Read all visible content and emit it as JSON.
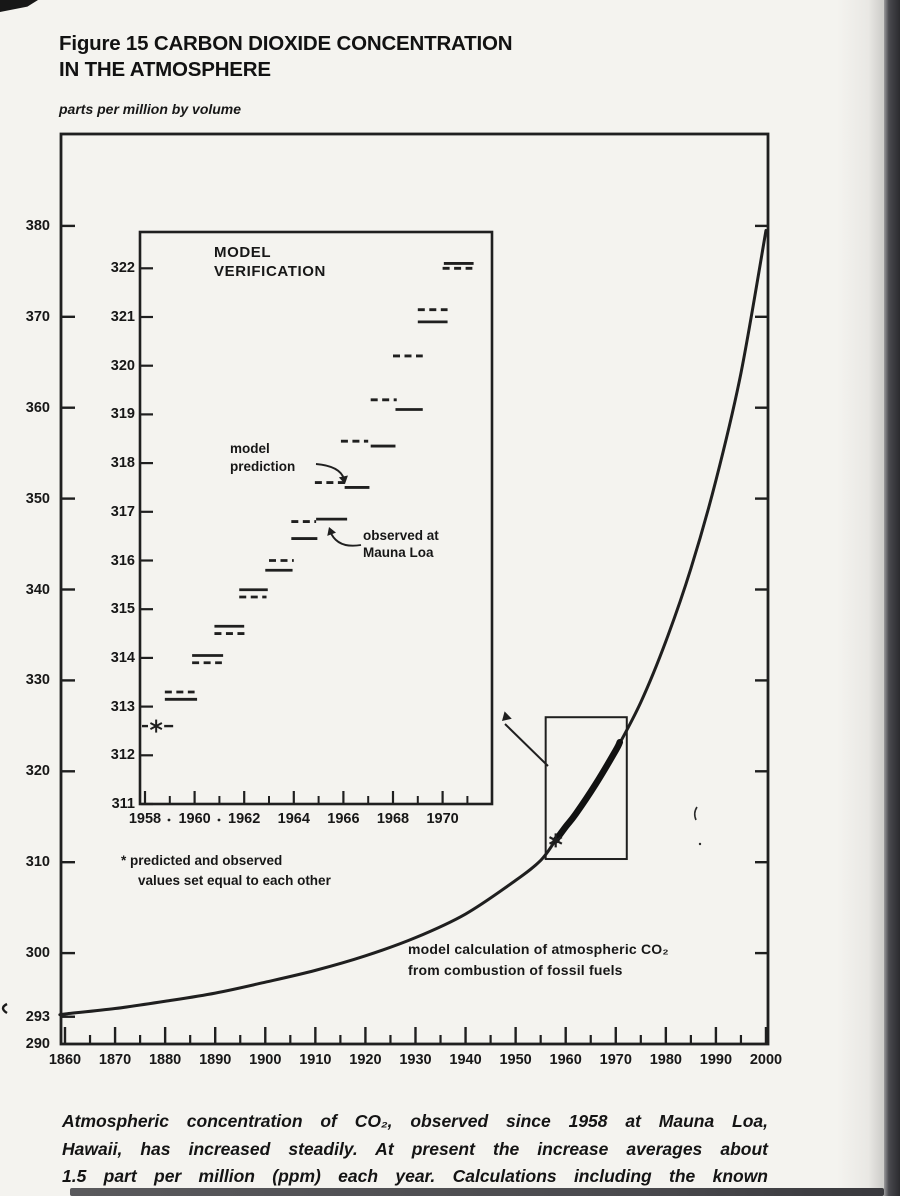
{
  "page": {
    "title_line1": "Figure 15 CARBON DIOXIDE CONCENTRATION",
    "title_line2": "IN THE ATMOSPHERE",
    "units_label": "parts per million by volume",
    "footnote_line1": "* predicted and observed",
    "footnote_line2": "values set equal to each other",
    "caption_lines": [
      "Atmospheric concentration of CO₂, observed since 1958 at Mauna Loa,",
      "Hawaii, has increased steadily. At present the increase averages about",
      "1.5 part per million (ppm) each year. Calculations including the known"
    ],
    "ink_color": "#1f1f1f",
    "paper_color": "#f4f3ef"
  },
  "chart_data": {
    "main": {
      "type": "line",
      "title": "Figure 15 Carbon dioxide concentration in the atmosphere",
      "ylabel": "parts per million by volume",
      "xlim": [
        1860,
        2000
      ],
      "ylim": [
        290,
        390
      ],
      "y_ticks": [
        380,
        370,
        360,
        350,
        340,
        330,
        320,
        310,
        300,
        293,
        290
      ],
      "x_ticks": [
        1860,
        1870,
        1880,
        1890,
        1900,
        1910,
        1920,
        1930,
        1940,
        1950,
        1960,
        1970,
        1980,
        1990,
        2000
      ],
      "grid": false,
      "curve_label_line1": "model calculation of atmospheric CO₂",
      "curve_label_line2": "from combustion of fossil fuels",
      "model_curve": [
        [
          1859.2,
          293.2
        ],
        [
          1860,
          293.3
        ],
        [
          1870,
          293.9
        ],
        [
          1880,
          294.7
        ],
        [
          1890,
          295.6
        ],
        [
          1900,
          296.8
        ],
        [
          1910,
          298.1
        ],
        [
          1920,
          299.7
        ],
        [
          1930,
          301.7
        ],
        [
          1940,
          304.3
        ],
        [
          1950,
          308.0
        ],
        [
          1955,
          310.2
        ],
        [
          1958,
          312.4
        ],
        [
          1962,
          315.3
        ],
        [
          1966,
          318.6
        ],
        [
          1970,
          322.3
        ],
        [
          1975,
          327.6
        ],
        [
          1980,
          334.3
        ],
        [
          1985,
          342.3
        ],
        [
          1990,
          352.0
        ],
        [
          1995,
          363.8
        ],
        [
          2000,
          379.5
        ]
      ],
      "observed_overlay": [
        [
          1958,
          312.4
        ],
        [
          1960,
          313.9
        ],
        [
          1962,
          315.3
        ],
        [
          1966,
          318.6
        ],
        [
          1970,
          322.3
        ],
        [
          1970.8,
          323.2
        ]
      ],
      "star_marker": {
        "year": 1958,
        "value": 312.4,
        "symbol": "*"
      },
      "highlight_box": {
        "year_from": 1956.0,
        "year_to": 1972.2,
        "value_from": 310.35,
        "value_to": 325.95
      }
    },
    "inset": {
      "type": "line",
      "title_line1": "MODEL",
      "title_line2": "VERIFICATION",
      "xlim": [
        1958,
        1972
      ],
      "ylim": [
        311,
        322.75
      ],
      "y_ticks": [
        322,
        321,
        320,
        319,
        318,
        317,
        316,
        315,
        314,
        313,
        312,
        311
      ],
      "x_major_ticks": [
        1958,
        1960,
        1962,
        1964,
        1966,
        1968,
        1970
      ],
      "x_minor_ticks": [
        1959,
        1961,
        1963,
        1965,
        1967,
        1969,
        1971
      ],
      "labels": {
        "prediction_line1": "model",
        "prediction_line2": "prediction",
        "observed_line1": "observed at",
        "observed_line2": "Mauna Loa"
      },
      "series": [
        {
          "name": "model prediction",
          "style": "dashed",
          "segments": [
            {
              "from": 1958.8,
              "to": 1960.0,
              "value": 313.3
            },
            {
              "from": 1959.9,
              "to": 1961.1,
              "value": 313.9
            },
            {
              "from": 1960.8,
              "to": 1962.1,
              "value": 314.5
            },
            {
              "from": 1961.8,
              "to": 1962.9,
              "value": 315.25
            },
            {
              "from": 1963.0,
              "to": 1964.0,
              "value": 316.0
            },
            {
              "from": 1963.9,
              "to": 1964.9,
              "value": 316.8
            },
            {
              "from": 1964.85,
              "to": 1966.1,
              "value": 317.6
            },
            {
              "from": 1965.9,
              "to": 1967.0,
              "value": 318.45
            },
            {
              "from": 1967.1,
              "to": 1968.15,
              "value": 319.3
            },
            {
              "from": 1968.0,
              "to": 1969.2,
              "value": 320.2
            },
            {
              "from": 1969.0,
              "to": 1970.2,
              "value": 321.15
            },
            {
              "from": 1970.0,
              "to": 1971.2,
              "value": 322.0
            }
          ]
        },
        {
          "name": "observed at Mauna Loa",
          "style": "solid",
          "segments": [
            {
              "from": 1958.8,
              "to": 1960.1,
              "value": 313.15
            },
            {
              "from": 1959.9,
              "to": 1961.15,
              "value": 314.05
            },
            {
              "from": 1960.8,
              "to": 1962.0,
              "value": 314.65
            },
            {
              "from": 1961.8,
              "to": 1962.95,
              "value": 315.4
            },
            {
              "from": 1962.85,
              "to": 1963.95,
              "value": 315.8
            },
            {
              "from": 1963.9,
              "to": 1964.95,
              "value": 316.45
            },
            {
              "from": 1964.9,
              "to": 1966.15,
              "value": 316.85
            },
            {
              "from": 1966.05,
              "to": 1967.05,
              "value": 317.5
            },
            {
              "from": 1967.1,
              "to": 1968.1,
              "value": 318.35
            },
            {
              "from": 1968.1,
              "to": 1969.2,
              "value": 319.1
            },
            {
              "from": 1969.0,
              "to": 1970.2,
              "value": 320.9
            },
            {
              "from": 1970.05,
              "to": 1971.25,
              "value": 322.1
            }
          ]
        }
      ],
      "star_point": {
        "year": 1958.45,
        "value": 312.6,
        "symbol": "*"
      }
    }
  }
}
